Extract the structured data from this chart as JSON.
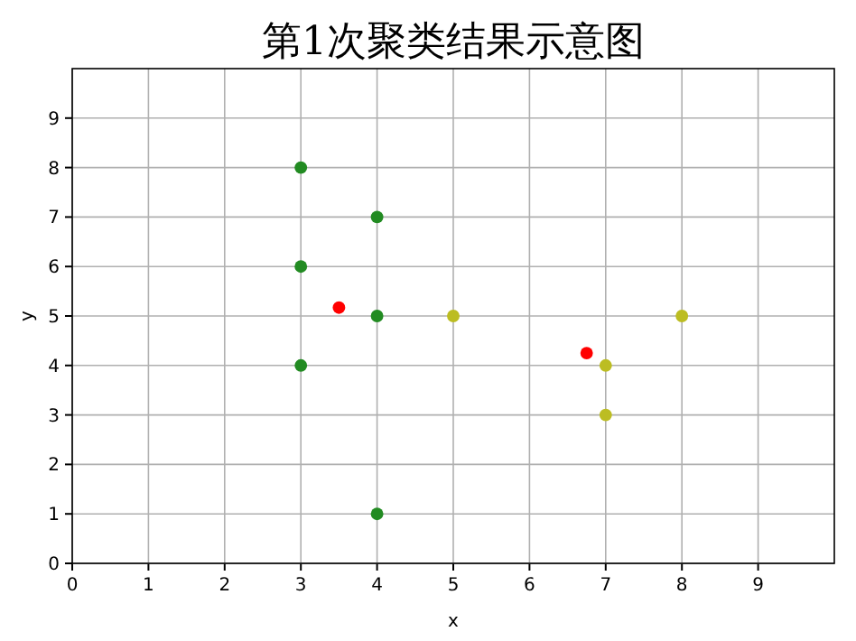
{
  "chart_data": {
    "type": "scatter",
    "title": "第1次聚类结果示意图",
    "xlabel": "x",
    "ylabel": "y",
    "xlim": [
      0,
      10
    ],
    "ylim": [
      0,
      10
    ],
    "xticks": [
      0,
      1,
      2,
      3,
      4,
      5,
      6,
      7,
      8,
      9
    ],
    "yticks": [
      0,
      1,
      2,
      3,
      4,
      5,
      6,
      7,
      8,
      9
    ],
    "grid": true,
    "marker": "circle",
    "series": [
      {
        "color": "#228b22",
        "x": [
          3,
          4,
          3,
          4,
          3,
          4
        ],
        "values": [
          8,
          7,
          6,
          5,
          4,
          1
        ]
      },
      {
        "color": "#bcbd22",
        "x": [
          5,
          7,
          7,
          8
        ],
        "values": [
          5,
          4,
          3,
          5
        ]
      },
      {
        "color": "#ff0000",
        "x": [
          3.5,
          6.75
        ],
        "values": [
          5.17,
          4.25
        ]
      }
    ]
  }
}
